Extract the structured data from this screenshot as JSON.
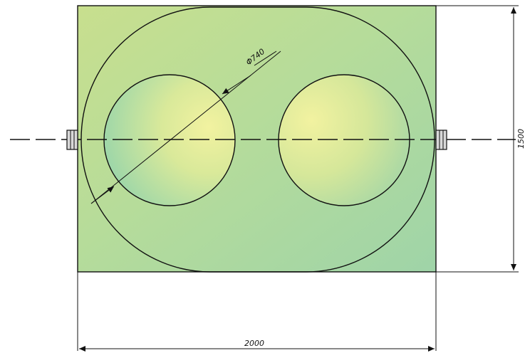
{
  "drawing": {
    "diameter_label": "Φ740",
    "height_label": "1500",
    "width_label": "2000"
  }
}
